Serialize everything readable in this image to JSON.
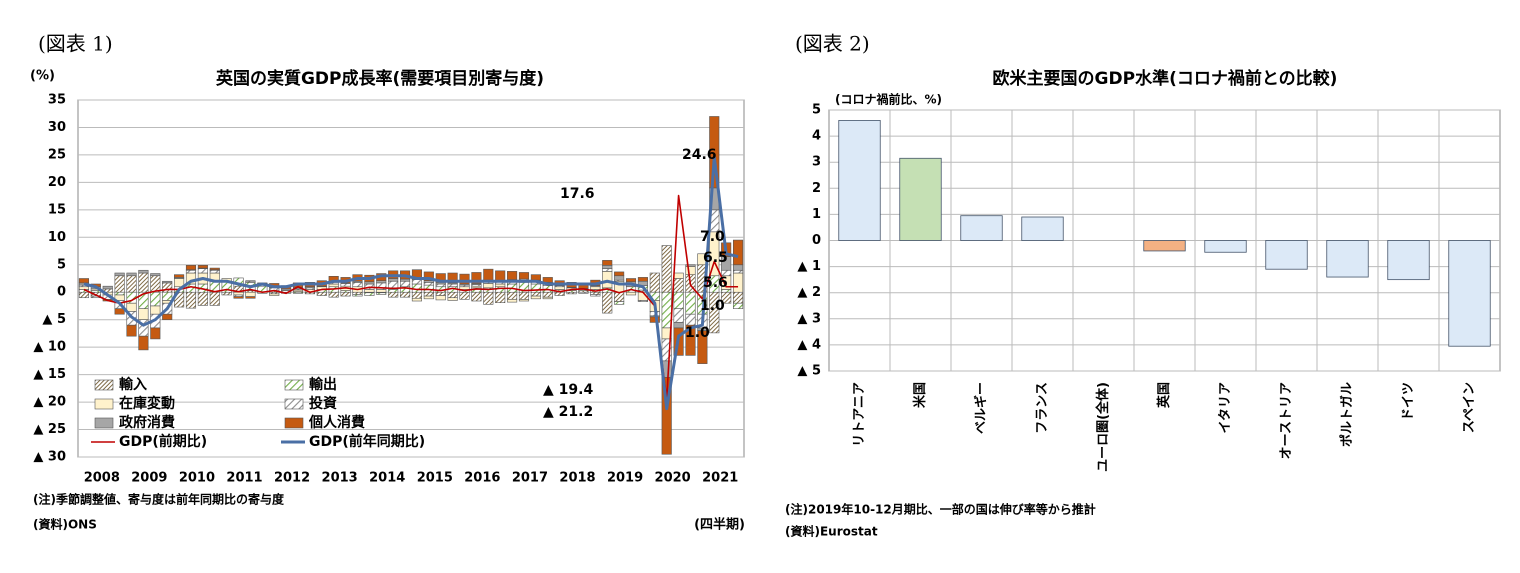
{
  "figure_labels": [
    "(図表 1)",
    "(図表 2)"
  ],
  "chart_data": [
    {
      "type": "stacked_bar_line",
      "title": "英国の実質GDP成長率(需要項目別寄与度)",
      "y_label": "(%)",
      "x_label": "(四半期)",
      "notes": [
        "(注)季節調整値、寄与度は前年同期比の寄与度",
        "(資料)ONS"
      ],
      "categories": [
        "2008",
        null,
        null,
        null,
        "2009",
        null,
        null,
        null,
        "2010",
        null,
        null,
        null,
        "2011",
        null,
        null,
        null,
        "2012",
        null,
        null,
        null,
        "2013",
        null,
        null,
        null,
        "2014",
        null,
        null,
        null,
        "2015",
        null,
        null,
        null,
        "2016",
        null,
        null,
        null,
        "2017",
        null,
        null,
        null,
        "2018",
        null,
        null,
        null,
        "2019",
        null,
        null,
        null,
        "2020",
        null,
        null,
        null,
        "2021",
        null,
        null,
        null
      ],
      "ylim": [
        -30,
        35
      ],
      "yticks": [
        35,
        30,
        25,
        20,
        15,
        10,
        5,
        0,
        {
          "value": -5,
          "label": "▲ 5"
        },
        {
          "value": -10,
          "label": "▲ 10"
        },
        {
          "value": -15,
          "label": "▲ 15"
        },
        {
          "value": -20,
          "label": "▲ 20"
        },
        {
          "value": -25,
          "label": "▲ 25"
        },
        {
          "value": -30,
          "label": "▲ 30"
        }
      ],
      "grid": true,
      "legend": "lower-left",
      "series": [
        {
          "name": "輸入",
          "kind": "bar",
          "pattern": "hatch",
          "color": "#7f6a45",
          "values": [
            -1.0,
            -0.7,
            0.6,
            3.0,
            3.0,
            3.5,
            3.0,
            1.7,
            -2.7,
            -2.9,
            -2.4,
            -2.4,
            -0.5,
            1.1,
            0.3,
            0.1,
            -0.3,
            0.0,
            0.1,
            -0.3,
            -0.6,
            -0.9,
            -0.7,
            -0.4,
            -0.1,
            -0.1,
            -0.9,
            -0.9,
            -1.1,
            -0.7,
            -0.6,
            -1.0,
            -1.3,
            -1.6,
            -2.2,
            -1.9,
            -1.3,
            -1.3,
            -0.7,
            -0.9,
            -0.6,
            -0.3,
            0.3,
            -0.4,
            -3.8,
            -1.7,
            0.0,
            0.4,
            3.5,
            8.5,
            2.5,
            3.2,
            5.0,
            -7.4,
            -2.0,
            -2.0
          ]
        },
        {
          "name": "輸出",
          "kind": "bar",
          "pattern": "stripe",
          "color": "#70ad47",
          "values": [
            0.5,
            0.3,
            0.0,
            -0.5,
            -2.0,
            -3.0,
            -2.5,
            -1.5,
            1.0,
            1.5,
            1.5,
            2.0,
            2.0,
            1.5,
            1.5,
            1.0,
            0.3,
            0.0,
            -0.2,
            0.0,
            0.5,
            1.0,
            0.3,
            -0.3,
            -0.5,
            -0.3,
            0.5,
            0.8,
            1.5,
            1.3,
            1.0,
            1.0,
            0.5,
            0.8,
            0.8,
            1.0,
            1.5,
            1.8,
            1.5,
            1.2,
            0.5,
            0.3,
            0.0,
            0.5,
            0.8,
            -0.5,
            1.0,
            0.8,
            -1.5,
            -6.5,
            -3.0,
            -4.0,
            -4.0,
            3.0,
            0.5,
            -1.0
          ]
        },
        {
          "name": "在庫変動",
          "kind": "bar",
          "pattern": "solid",
          "color": "#fff2cc",
          "values": [
            0.5,
            0.3,
            -0.5,
            -1.0,
            -1.5,
            -2.0,
            -1.5,
            -0.5,
            1.5,
            2.0,
            2.0,
            1.5,
            0.5,
            -0.5,
            -0.8,
            -0.2,
            -0.3,
            -0.2,
            0.3,
            0.5,
            0.5,
            0.5,
            0.8,
            1.0,
            0.5,
            0.5,
            0.3,
            0.2,
            -0.5,
            -0.5,
            -0.8,
            -0.5,
            0.5,
            0.3,
            0.8,
            0.5,
            -0.5,
            -0.3,
            -0.5,
            -0.3,
            0.5,
            0.5,
            0.3,
            0.5,
            3.0,
            2.0,
            -0.5,
            -1.5,
            -2.0,
            -2.0,
            1.0,
            1.5,
            2.0,
            8.0,
            2.5,
            3.5
          ]
        },
        {
          "name": "投資",
          "kind": "bar",
          "pattern": "stripe",
          "color": "#8c8c8c",
          "values": [
            0.3,
            -0.3,
            -0.8,
            -1.5,
            -2.5,
            -3.0,
            -2.5,
            -2.0,
            0.0,
            0.5,
            0.8,
            0.5,
            0.0,
            -0.3,
            0.2,
            0.5,
            0.5,
            0.3,
            0.2,
            0.3,
            0.0,
            0.3,
            0.5,
            0.8,
            1.0,
            1.2,
            1.2,
            1.0,
            0.8,
            0.5,
            0.5,
            0.5,
            0.3,
            0.3,
            0.4,
            0.5,
            0.8,
            0.6,
            0.6,
            0.5,
            0.2,
            0.0,
            -0.2,
            -0.3,
            0.5,
            0.2,
            0.0,
            -0.2,
            -0.8,
            -4.0,
            -2.5,
            -2.0,
            -2.5,
            4.0,
            1.0,
            0.5
          ]
        },
        {
          "name": "政府消費",
          "kind": "bar",
          "pattern": "solid",
          "color": "#a6a6a6",
          "values": [
            0.4,
            0.4,
            0.5,
            0.5,
            0.5,
            0.5,
            0.4,
            0.3,
            0.2,
            0.1,
            0.1,
            0.1,
            0.0,
            0.0,
            0.1,
            0.1,
            0.3,
            0.3,
            0.3,
            0.2,
            0.1,
            0.1,
            0.1,
            0.2,
            0.4,
            0.4,
            0.5,
            0.4,
            0.3,
            0.3,
            0.3,
            0.2,
            0.2,
            0.2,
            0.2,
            0.1,
            0.0,
            0.0,
            0.1,
            0.1,
            0.1,
            0.1,
            0.1,
            0.2,
            0.6,
            0.8,
            0.9,
            0.8,
            -0.2,
            -3.0,
            -1.0,
            0.3,
            -0.5,
            4.0,
            2.5,
            1.0
          ]
        },
        {
          "name": "個人消費",
          "kind": "bar",
          "pattern": "solid",
          "color": "#c55a11",
          "values": [
            0.8,
            0.5,
            -0.3,
            -1.0,
            -2.0,
            -2.5,
            -2.0,
            -1.0,
            0.5,
            0.8,
            0.5,
            0.3,
            0.0,
            -0.3,
            -0.3,
            0.0,
            0.5,
            0.6,
            0.8,
            0.8,
            1.0,
            1.0,
            1.0,
            1.2,
            1.2,
            1.3,
            1.4,
            1.5,
            1.5,
            1.6,
            1.6,
            1.8,
            1.8,
            2.0,
            2.0,
            1.8,
            1.5,
            1.2,
            1.0,
            0.9,
            0.8,
            0.9,
            1.0,
            1.0,
            0.9,
            0.7,
            0.6,
            0.7,
            -1.0,
            -14.0,
            -5.0,
            -5.5,
            -6.0,
            13.0,
            2.5,
            4.5
          ]
        },
        {
          "name": "GDP(前期比)",
          "kind": "line",
          "color": "#c00000",
          "values": [
            0.5,
            -0.5,
            -1.5,
            -2.0,
            -1.5,
            -0.3,
            0.2,
            0.5,
            0.5,
            1.0,
            0.6,
            0.1,
            0.5,
            0.1,
            0.5,
            0.0,
            0.3,
            -0.2,
            1.0,
            0.0,
            0.5,
            0.6,
            0.8,
            0.5,
            0.9,
            0.8,
            0.7,
            0.8,
            0.5,
            0.5,
            0.3,
            0.7,
            0.3,
            0.6,
            0.5,
            0.7,
            0.7,
            0.3,
            0.4,
            0.5,
            0.1,
            0.5,
            0.6,
            0.2,
            0.6,
            -0.1,
            0.5,
            0.0,
            -2.5,
            -19.4,
            17.6,
            1.3,
            -1.2,
            5.6,
            1.0,
            1.0
          ]
        },
        {
          "name": "GDP(前年同期比)",
          "kind": "line",
          "color": "#4a6fa5",
          "values": [
            1.5,
            1.0,
            -0.5,
            -2.0,
            -4.5,
            -6.0,
            -5.0,
            -3.0,
            0.5,
            2.0,
            2.5,
            2.0,
            2.0,
            1.5,
            1.0,
            1.5,
            1.0,
            1.0,
            1.5,
            1.5,
            1.5,
            2.0,
            2.0,
            2.5,
            2.5,
            3.0,
            3.0,
            3.0,
            2.5,
            2.5,
            2.0,
            2.0,
            2.0,
            2.0,
            2.0,
            2.0,
            2.0,
            2.0,
            2.0,
            1.5,
            1.5,
            1.5,
            1.5,
            1.5,
            2.0,
            1.5,
            1.5,
            1.0,
            -2.0,
            -21.2,
            -8.0,
            -6.5,
            -6.0,
            24.6,
            7.0,
            6.5
          ]
        }
      ],
      "annotations": [
        "17.6",
        "24.6",
        "7.0",
        "6.5",
        "5.6",
        "1.0",
        "1.0",
        "▲ 19.4",
        "▲ 21.2"
      ]
    },
    {
      "type": "bar",
      "title": "欧米主要国のGDP水準(コロナ禍前との比較)",
      "y_label": "(コロナ禍前比、%)",
      "notes": [
        "(注)2019年10-12月期比、一部の国は伸び率等から推計",
        "(資料)Eurostat"
      ],
      "categories": [
        "リトアニア",
        "米国",
        "ベルギー",
        "フランス",
        "ユーロ圏(全体)",
        "英国",
        "イタリア",
        "オーストリア",
        "ポルトガル",
        "ドイツ",
        "スペイン"
      ],
      "values": [
        4.6,
        3.15,
        0.95,
        0.9,
        0,
        -0.4,
        -0.45,
        -1.1,
        -1.4,
        -1.5,
        -4.05
      ],
      "colors": [
        "#dce9f7",
        "#c5e0b4",
        "#dce9f7",
        "#dce9f7",
        "#dce9f7",
        "#f4b183",
        "#dce9f7",
        "#dce9f7",
        "#dce9f7",
        "#dce9f7",
        "#dce9f7"
      ],
      "ylim": [
        -5,
        5
      ],
      "yticks": [
        5,
        4,
        3,
        2,
        1,
        0,
        {
          "value": -1,
          "label": "▲ 1"
        },
        {
          "value": -2,
          "label": "▲ 2"
        },
        {
          "value": -3,
          "label": "▲ 3"
        },
        {
          "value": -4,
          "label": "▲ 4"
        },
        {
          "value": -5,
          "label": "▲ 5"
        }
      ],
      "grid": true
    }
  ]
}
